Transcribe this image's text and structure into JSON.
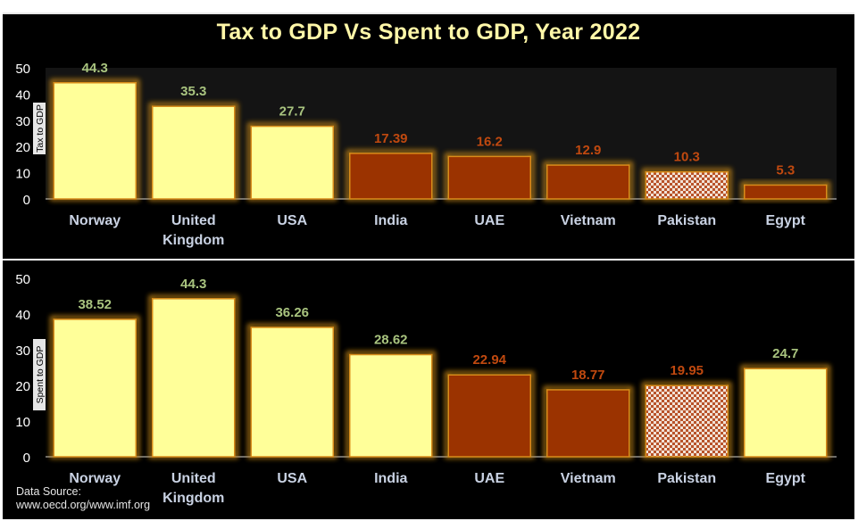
{
  "title": "Tax to GDP Vs Spent to GDP, Year 2022",
  "source": {
    "line1": "Data Source:",
    "line2": "www.oecd.org/www.imf.org"
  },
  "colors": {
    "background": "#000000",
    "title_text": "#fff7a8",
    "high_bar": "#ffff99",
    "low_bar": "#9b3300",
    "label_high": "#a9c47f",
    "label_low": "#c0490f",
    "category_text": "#c9d2e3",
    "axis_text": "#ffffff"
  },
  "chart_data": [
    {
      "type": "bar",
      "ylabel": "Tax to GDP",
      "ylim": [
        0,
        50
      ],
      "yticks": [
        "0",
        "10",
        "20",
        "30",
        "40",
        "50"
      ],
      "categories": [
        "Norway",
        "United Kingdom",
        "USA",
        "India",
        "UAE",
        "Vietnam",
        "Pakistan",
        "Egypt"
      ],
      "values": [
        44.3,
        35.3,
        27.7,
        17.39,
        16.2,
        12.9,
        10.3,
        5.3
      ],
      "value_labels": [
        "44.3",
        "35.3",
        "27.7",
        "17.39",
        "16.2",
        "12.9",
        "10.3",
        "5.3"
      ],
      "styles": [
        "high",
        "high",
        "high",
        "low",
        "low",
        "low",
        "pattern",
        "low"
      ]
    },
    {
      "type": "bar",
      "ylabel": "Spent to GDP",
      "ylim": [
        0,
        50
      ],
      "yticks": [
        "0",
        "10",
        "20",
        "30",
        "40",
        "50"
      ],
      "categories": [
        "Norway",
        "United Kingdom",
        "USA",
        "India",
        "UAE",
        "Vietnam",
        "Pakistan",
        "Egypt"
      ],
      "values": [
        38.52,
        44.3,
        36.26,
        28.62,
        22.94,
        18.77,
        19.95,
        24.7
      ],
      "value_labels": [
        "38.52",
        "44.3",
        "36.26",
        "28.62",
        "22.94",
        "18.77",
        "19.95",
        "24.7"
      ],
      "styles": [
        "high",
        "high",
        "high",
        "high",
        "low",
        "low",
        "pattern",
        "high"
      ]
    }
  ]
}
